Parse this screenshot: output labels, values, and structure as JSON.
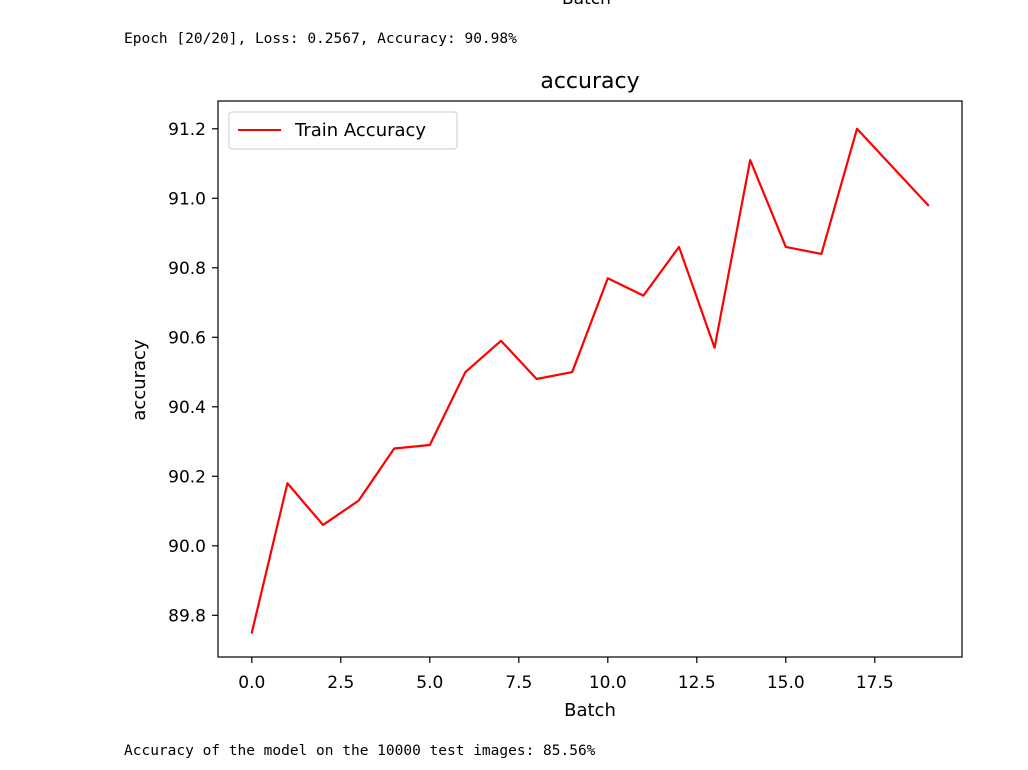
{
  "previous_output": {
    "cut_off_label": "Batch"
  },
  "console": {
    "epoch_line": "Epoch [20/20], Loss: 0.2567, Accuracy: 90.98%",
    "test_line": "Accuracy of the model on the 10000 test images: 85.56%"
  },
  "chart_data": {
    "type": "line",
    "title": "accuracy",
    "xlabel": "Batch",
    "ylabel": "accuracy",
    "xlim": [
      -0.95,
      19.95
    ],
    "ylim": [
      89.68,
      91.28
    ],
    "x_ticks": [
      0.0,
      2.5,
      5.0,
      7.5,
      10.0,
      12.5,
      15.0,
      17.5
    ],
    "x_tick_labels": [
      "0.0",
      "2.5",
      "5.0",
      "7.5",
      "10.0",
      "12.5",
      "15.0",
      "17.5"
    ],
    "y_ticks": [
      89.8,
      90.0,
      90.2,
      90.4,
      90.6,
      90.8,
      91.0,
      91.2
    ],
    "y_tick_labels": [
      "89.8",
      "90.0",
      "90.2",
      "90.4",
      "90.6",
      "90.8",
      "91.0",
      "91.2"
    ],
    "grid": false,
    "legend_position": "upper-left",
    "x": [
      0,
      1,
      2,
      3,
      4,
      5,
      6,
      7,
      8,
      9,
      10,
      11,
      12,
      13,
      14,
      15,
      16,
      17,
      18,
      19
    ],
    "series": [
      {
        "name": "Train Accuracy",
        "color": "#ff0000",
        "values": [
          89.75,
          90.18,
          90.06,
          90.13,
          90.28,
          90.29,
          90.5,
          90.59,
          90.48,
          90.5,
          90.77,
          90.72,
          90.86,
          90.57,
          91.11,
          90.86,
          90.84,
          91.2,
          91.09,
          90.98
        ]
      }
    ]
  }
}
